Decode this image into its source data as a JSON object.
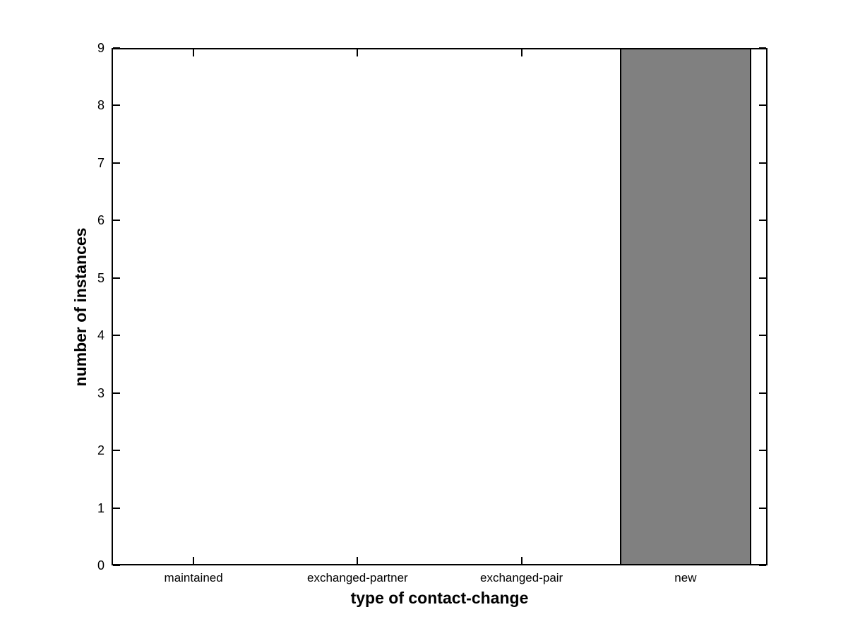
{
  "figure": {
    "background": "#ffffff",
    "axis_color": "#000000",
    "title": ""
  },
  "chart_data": {
    "type": "bar",
    "categories": [
      "maintained",
      "exchanged-partner",
      "exchanged-pair",
      "new"
    ],
    "values": [
      0,
      0,
      0,
      9
    ],
    "title": "",
    "xlabel": "type of contact-change",
    "ylabel": "number of instances",
    "ylim": [
      0,
      9
    ],
    "yticks": [
      0,
      1,
      2,
      3,
      4,
      5,
      6,
      7,
      8,
      9
    ],
    "bar_color": "#808080",
    "bar_edge_color": "#000000",
    "bar_rel_width": 0.8,
    "grid": false,
    "box": true,
    "legend": null
  }
}
